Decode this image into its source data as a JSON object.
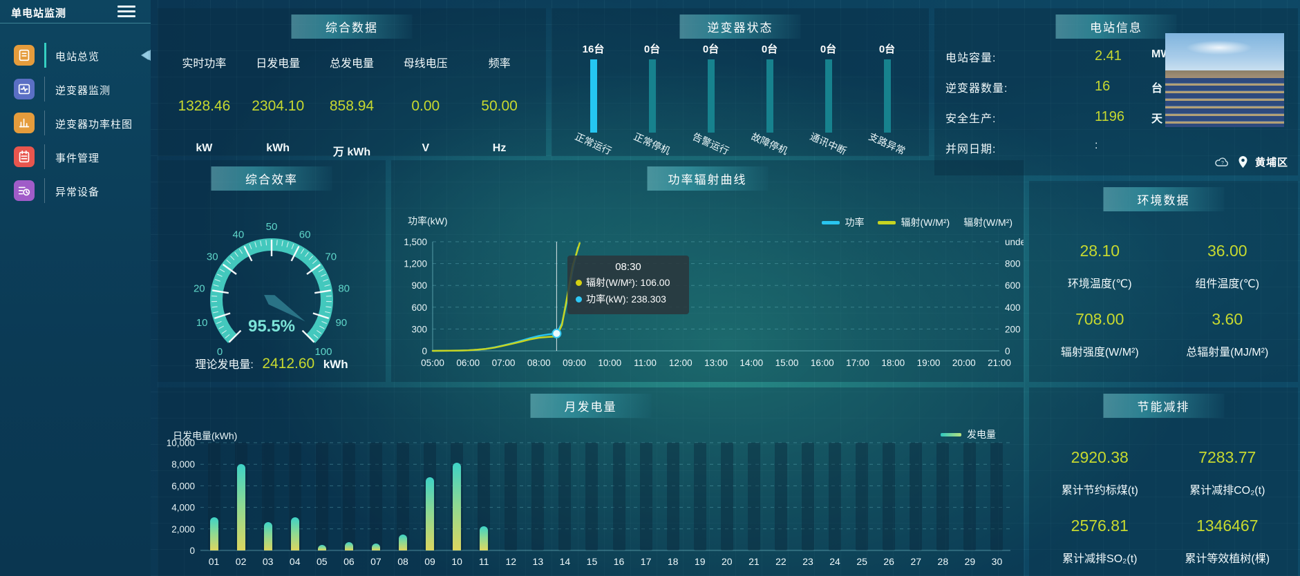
{
  "app": {
    "title": "单电站监测"
  },
  "sidebar": {
    "items": [
      {
        "label": "电站总览",
        "icon": "overview",
        "color": "#e59c3c",
        "active": true
      },
      {
        "label": "逆变器监测",
        "icon": "inverter-monitor",
        "color": "#5a6fc4",
        "active": false
      },
      {
        "label": "逆变器功率柱图",
        "icon": "power-bars",
        "color": "#e59c3c",
        "active": false
      },
      {
        "label": "事件管理",
        "icon": "events",
        "color": "#e8564e",
        "active": false
      },
      {
        "label": "异常设备",
        "icon": "abnormal-devices",
        "color": "#a05cc8",
        "active": false
      }
    ]
  },
  "summary": {
    "title": "综合数据",
    "metrics": [
      {
        "label": "实时功率",
        "value": "1328.46",
        "unit": "kW"
      },
      {
        "label": "日发电量",
        "value": "2304.10",
        "unit": "kWh"
      },
      {
        "label": "总发电量",
        "value": "858.94",
        "unit": "万 kWh"
      },
      {
        "label": "母线电压",
        "value": "0.00",
        "unit": "V"
      },
      {
        "label": "频率",
        "value": "50.00",
        "unit": "Hz"
      }
    ]
  },
  "inverter_status": {
    "title": "逆变器状态",
    "active_color": "#25c6f2",
    "idle_color": "#17828e",
    "bars": [
      {
        "count": "16台",
        "label": "正常运行",
        "value": 16,
        "highlight": true
      },
      {
        "count": "0台",
        "label": "正常停机",
        "value": 0,
        "highlight": false
      },
      {
        "count": "0台",
        "label": "告警运行",
        "value": 0,
        "highlight": false
      },
      {
        "count": "0台",
        "label": "故障停机",
        "value": 0,
        "highlight": false
      },
      {
        "count": "0台",
        "label": "通讯中断",
        "value": 0,
        "highlight": false
      },
      {
        "count": "0台",
        "label": "支路异常",
        "value": 0,
        "highlight": false
      }
    ]
  },
  "station_info": {
    "title": "电站信息",
    "rows": [
      {
        "label": "电站容量:",
        "value": "2.41",
        "unit": "MW",
        "plain": false
      },
      {
        "label": "逆变器数量:",
        "value": "16",
        "unit": "台",
        "plain": false
      },
      {
        "label": "安全生产:",
        "value": "1196",
        "unit": "天",
        "plain": false
      },
      {
        "label": "并网日期:",
        "value": ":",
        "unit": "",
        "plain": true
      }
    ],
    "location": "黄埔区"
  },
  "efficiency": {
    "title": "综合效率",
    "theory_label": "理论发电量:",
    "theory_value": "2412.60",
    "theory_unit": "kWh"
  },
  "power_chart": {
    "title": "功率辐射曲线",
    "left_axis": {
      "label": "功率(kW)"
    },
    "right_axis_name": "辐射(W/M²)",
    "tooltip": {
      "title": "08:30",
      "rows": [
        {
          "color": "#d4d012",
          "text": "辐射(W/M²): 106.00"
        },
        {
          "color": "#2fc8f5",
          "text": "功率(kW): 238.303"
        }
      ]
    }
  },
  "environment": {
    "title": "环境数据",
    "cells": [
      {
        "value": "28.10",
        "label": "环境温度(℃)"
      },
      {
        "value": "36.00",
        "label": "组件温度(℃)"
      },
      {
        "value": "708.00",
        "label": "辐射强度(W/M²)"
      },
      {
        "value": "3.60",
        "label": "总辐射量(MJ/M²)"
      }
    ]
  },
  "energy_saving": {
    "title": "节能减排",
    "cells": [
      {
        "value": "2920.38",
        "label": "累计节约标煤(t)"
      },
      {
        "value": "7283.77",
        "label": "累计减排CO₂(t)"
      },
      {
        "value": "2576.81",
        "label": "累计减排SO₂(t)"
      },
      {
        "value": "1346467",
        "label": "累计等效植树(棵)"
      }
    ]
  },
  "monthly_chart": {
    "title": "月发电量",
    "ylabel": "日发电量(kWh)",
    "legend": "发电量"
  },
  "chart_data": [
    {
      "type": "gauge",
      "title": "综合效率",
      "min": 0,
      "max": 100,
      "tick_step": 10,
      "value": 95.5,
      "value_label": "95.5%",
      "arc_color": "#43c8bd",
      "needle_color": "#2a7386",
      "footer": {
        "label": "理论发电量:",
        "value": 2412.6,
        "unit": "kWh"
      }
    },
    {
      "type": "line",
      "title": "功率辐射曲线",
      "x_ticks": [
        "05:00",
        "06:00",
        "07:00",
        "08:00",
        "09:00",
        "10:00",
        "11:00",
        "12:00",
        "13:00",
        "14:00",
        "15:00",
        "16:00",
        "17:00",
        "18:00",
        "19:00",
        "20:00",
        "21:00"
      ],
      "x_range": [
        5,
        21
      ],
      "left_axis": {
        "label": "功率(kW)",
        "min": 0,
        "max": 1500,
        "ticks": [
          "0",
          "300",
          "600",
          "900",
          "1,200",
          "1,500"
        ]
      },
      "right_axis": {
        "label": "辐射(W/M²)",
        "min": 0,
        "max": 800,
        "ticks": [
          "0",
          "200",
          "400",
          "600",
          "800"
        ]
      },
      "legend": [
        {
          "name": "功率",
          "color": "#29c4f0"
        },
        {
          "name": "辐射(W/M²)",
          "color": "#c6d421"
        }
      ],
      "series": [
        {
          "name": "功率",
          "axis": "left",
          "color": "#29c4f0",
          "points": [
            [
              5,
              0
            ],
            [
              5.25,
              1
            ],
            [
              5.5,
              2
            ],
            [
              5.75,
              4
            ],
            [
              6,
              8
            ],
            [
              6.25,
              15
            ],
            [
              6.5,
              28
            ],
            [
              6.75,
              48
            ],
            [
              7,
              75
            ],
            [
              7.25,
              105
            ],
            [
              7.5,
              140
            ],
            [
              7.75,
              175
            ],
            [
              8,
              205
            ],
            [
              8.25,
              225
            ],
            [
              8.5,
              238.3
            ],
            [
              8.65,
              380
            ],
            [
              8.8,
              700
            ],
            [
              8.95,
              1100
            ],
            [
              9.1,
              1420
            ]
          ]
        },
        {
          "name": "辐射(W/M²)",
          "axis": "right",
          "color": "#c6d421",
          "points": [
            [
              5,
              0
            ],
            [
              5.25,
              0.5
            ],
            [
              5.5,
              1
            ],
            [
              5.75,
              2
            ],
            [
              6,
              4
            ],
            [
              6.25,
              8
            ],
            [
              6.5,
              14
            ],
            [
              6.75,
              24
            ],
            [
              7,
              38
            ],
            [
              7.25,
              52
            ],
            [
              7.5,
              68
            ],
            [
              7.75,
              84
            ],
            [
              8,
              96
            ],
            [
              8.25,
              102
            ],
            [
              8.5,
              106
            ],
            [
              8.65,
              190
            ],
            [
              8.8,
              400
            ],
            [
              8.95,
              620
            ],
            [
              9.15,
              790
            ]
          ]
        }
      ],
      "highlight": {
        "x": 8.5,
        "power_value": 238.303,
        "radiation_value": 106.0
      }
    },
    {
      "type": "bar",
      "title": "月发电量",
      "xlabel": "",
      "ylabel": "日发电量(kWh)",
      "ylim": [
        0,
        10000
      ],
      "yticks": [
        "0",
        "2,000",
        "4,000",
        "6,000",
        "8,000",
        "10,000"
      ],
      "legend": "发电量",
      "categories": [
        "01",
        "02",
        "03",
        "04",
        "05",
        "06",
        "07",
        "08",
        "09",
        "10",
        "11",
        "12",
        "13",
        "14",
        "15",
        "16",
        "17",
        "18",
        "19",
        "20",
        "21",
        "22",
        "23",
        "24",
        "25",
        "26",
        "27",
        "28",
        "29",
        "30"
      ],
      "values": [
        3100,
        8000,
        2650,
        3050,
        500,
        760,
        640,
        1450,
        6800,
        8150,
        2250,
        0,
        0,
        0,
        0,
        0,
        0,
        0,
        0,
        0,
        0,
        0,
        0,
        0,
        0,
        0,
        0,
        0,
        0,
        0
      ]
    },
    {
      "type": "bar",
      "title": "逆变器状态",
      "categories": [
        "正常运行",
        "正常停机",
        "告警运行",
        "故障停机",
        "通讯中断",
        "支路异常"
      ],
      "values": [
        16,
        0,
        0,
        0,
        0,
        0
      ],
      "unit": "台"
    }
  ]
}
